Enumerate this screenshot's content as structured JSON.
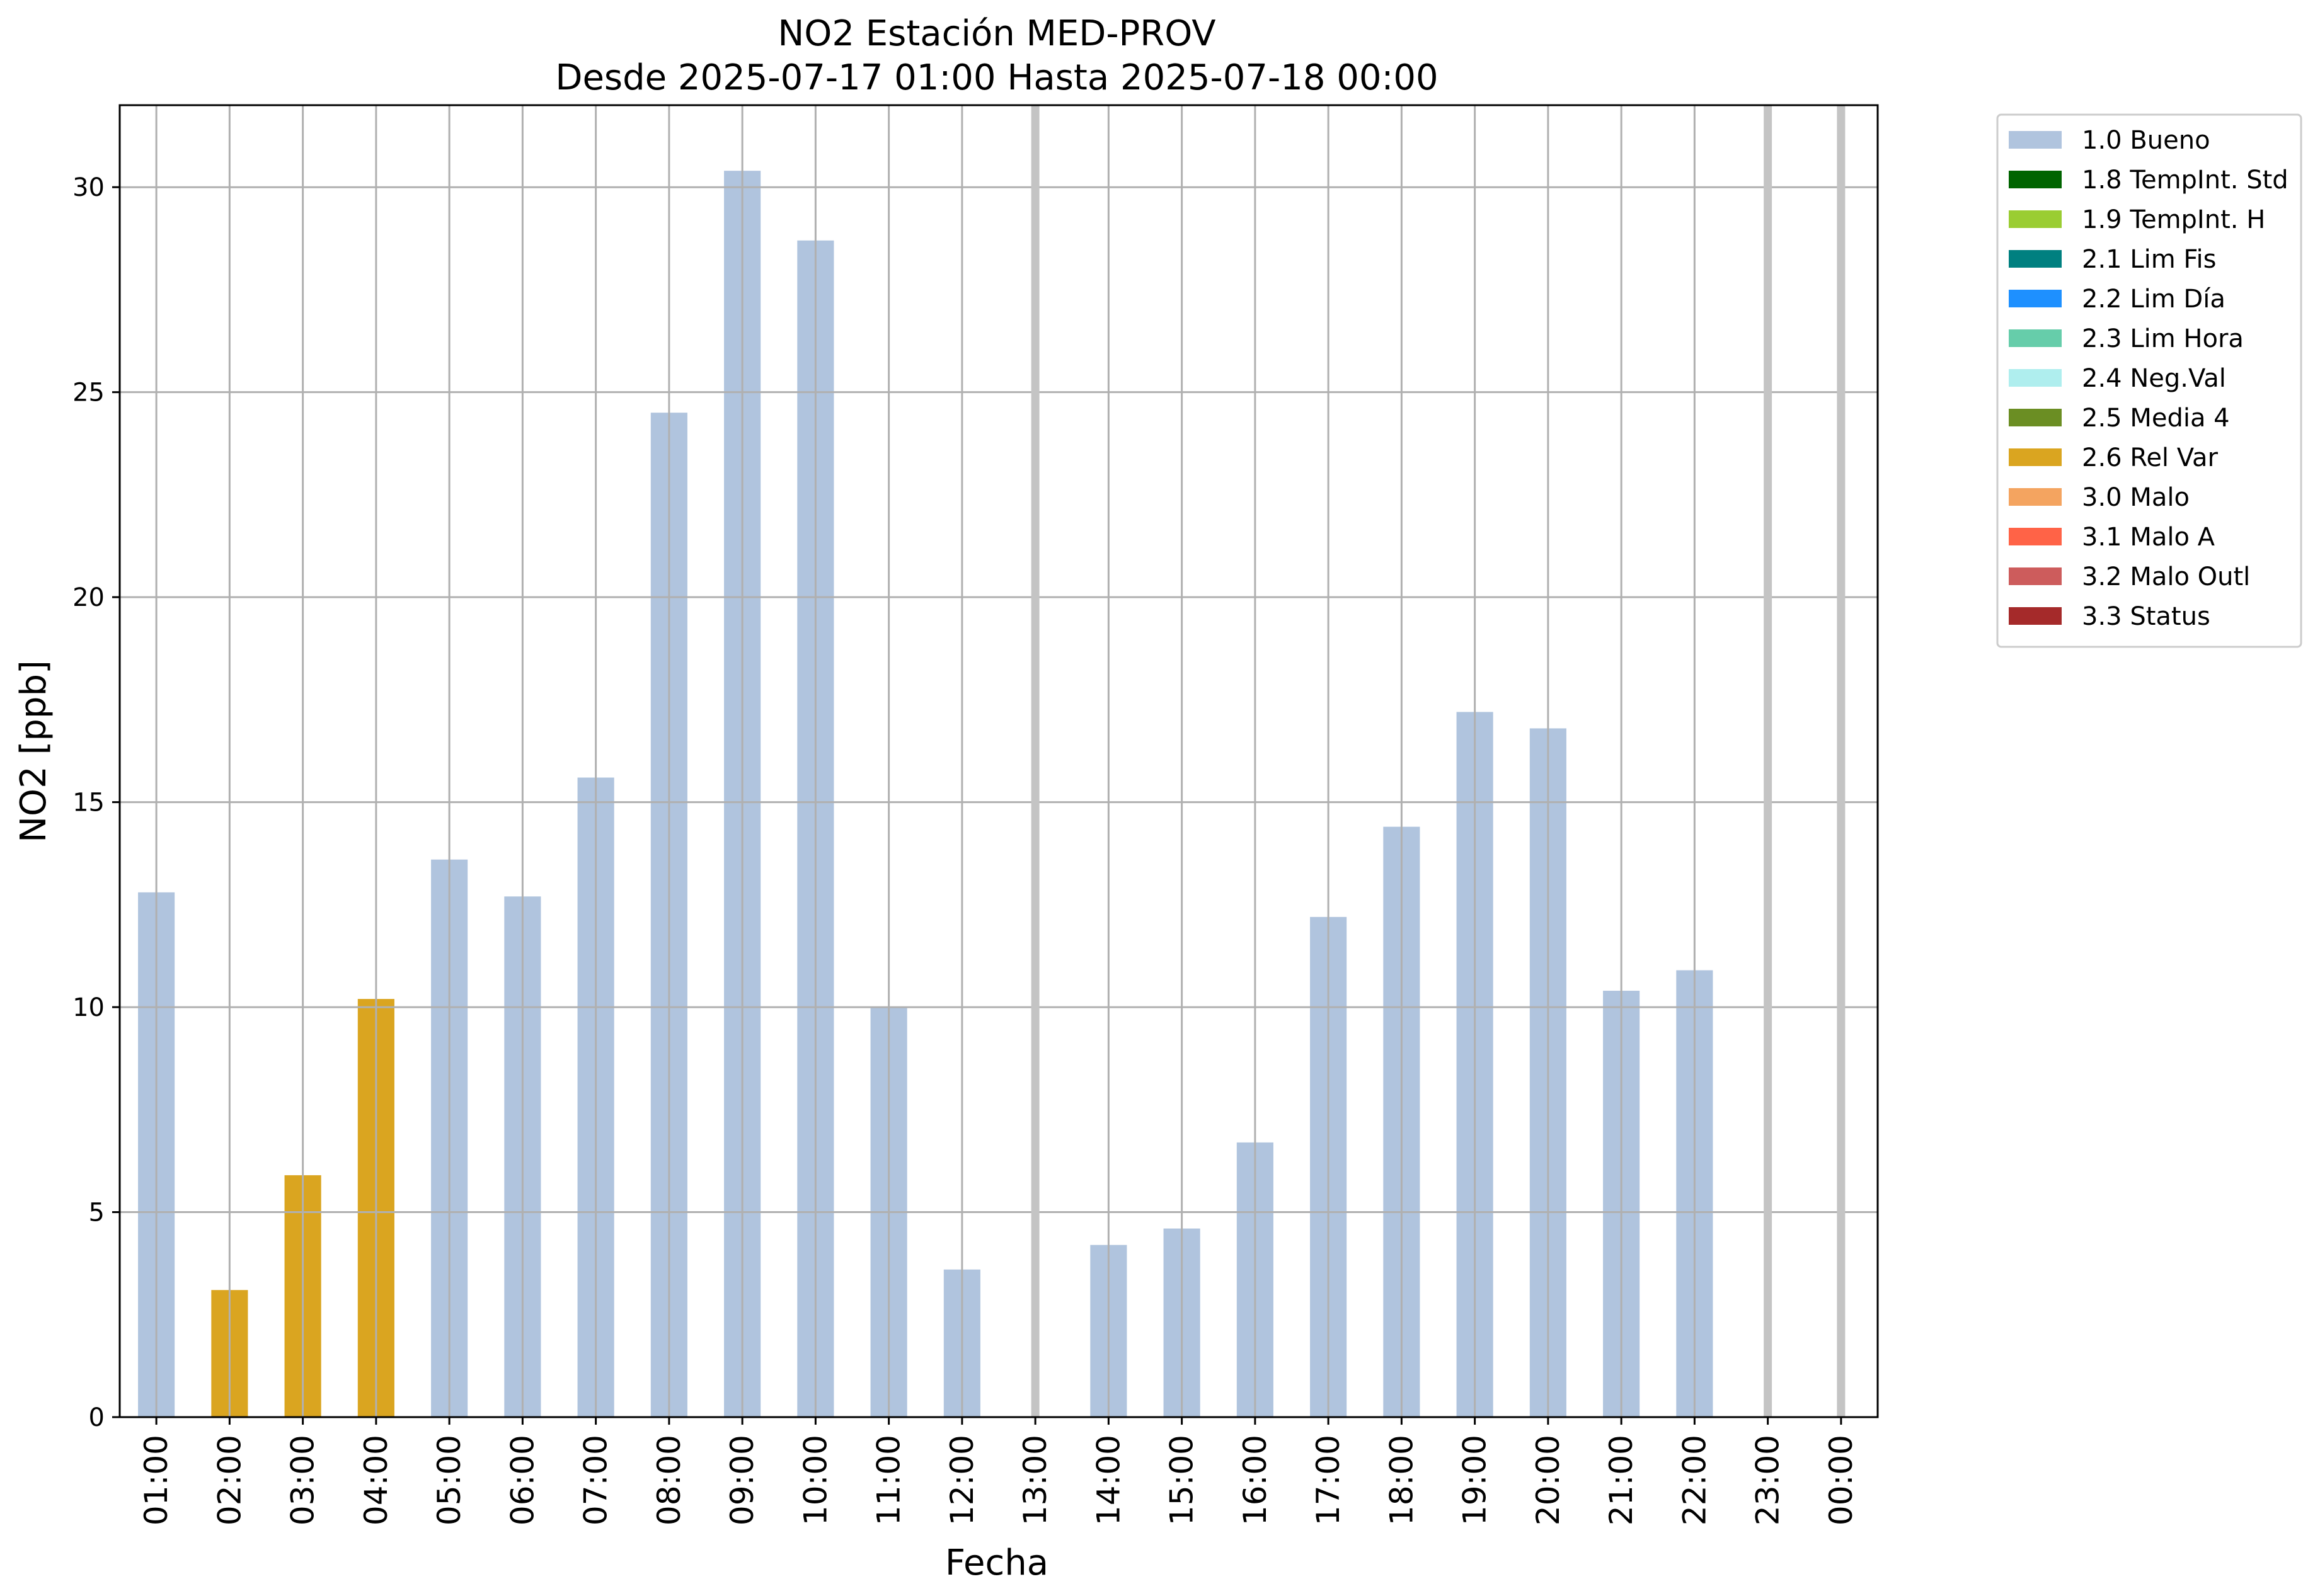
{
  "chart_data": {
    "type": "bar",
    "title": "NO2 Estación MED-PROV",
    "subtitle": "Desde 2025-07-17 01:00 Hasta 2025-07-18 00:00",
    "xlabel": "Fecha",
    "ylabel": "NO2 [ppb]",
    "ylim": [
      0,
      32
    ],
    "yticks": [
      0,
      5,
      10,
      15,
      20,
      25,
      30
    ],
    "grid": true,
    "legend_position": "outside-right",
    "categories": [
      "01:00",
      "02:00",
      "03:00",
      "04:00",
      "05:00",
      "06:00",
      "07:00",
      "08:00",
      "09:00",
      "10:00",
      "11:00",
      "12:00",
      "13:00",
      "14:00",
      "15:00",
      "16:00",
      "17:00",
      "18:00",
      "19:00",
      "20:00",
      "21:00",
      "22:00",
      "23:00",
      "00:00"
    ],
    "values": [
      12.8,
      3.1,
      5.9,
      10.2,
      13.6,
      12.7,
      15.6,
      24.5,
      30.4,
      28.7,
      10.0,
      3.6,
      null,
      4.2,
      4.6,
      6.7,
      12.2,
      14.4,
      17.2,
      16.8,
      10.4,
      10.9,
      null,
      null
    ],
    "flags": [
      "1.0 Bueno",
      "2.6 Rel Var",
      "2.6 Rel Var",
      "2.6 Rel Var",
      "1.0 Bueno",
      "1.0 Bueno",
      "1.0 Bueno",
      "1.0 Bueno",
      "1.0 Bueno",
      "1.0 Bueno",
      "1.0 Bueno",
      "1.0 Bueno",
      null,
      "1.0 Bueno",
      "1.0 Bueno",
      "1.0 Bueno",
      "1.0 Bueno",
      "1.0 Bueno",
      "1.0 Bueno",
      "1.0 Bueno",
      "1.0 Bueno",
      "1.0 Bueno",
      null,
      null
    ],
    "missing": [
      "13:00",
      "23:00",
      "00:00"
    ],
    "legend": [
      {
        "label": "1.0 Bueno",
        "color": "#b0c4de"
      },
      {
        "label": "1.8 TempInt. Std",
        "color": "#006400"
      },
      {
        "label": "1.9 TempInt. H",
        "color": "#9acd32"
      },
      {
        "label": "2.1 Lim Fis",
        "color": "#008080"
      },
      {
        "label": "2.2 Lim Día",
        "color": "#1e90ff"
      },
      {
        "label": "2.3 Lim Hora",
        "color": "#66cdaa"
      },
      {
        "label": "2.4 Neg.Val",
        "color": "#afeeee"
      },
      {
        "label": "2.5 Media 4",
        "color": "#6b8e23"
      },
      {
        "label": "2.6 Rel Var",
        "color": "#daa520"
      },
      {
        "label": "3.0 Malo",
        "color": "#f4a460"
      },
      {
        "label": "3.1 Malo A",
        "color": "#ff6347"
      },
      {
        "label": "3.2 Malo Outl",
        "color": "#cd5c5c"
      },
      {
        "label": "3.3 Status",
        "color": "#a52a2a"
      }
    ]
  }
}
